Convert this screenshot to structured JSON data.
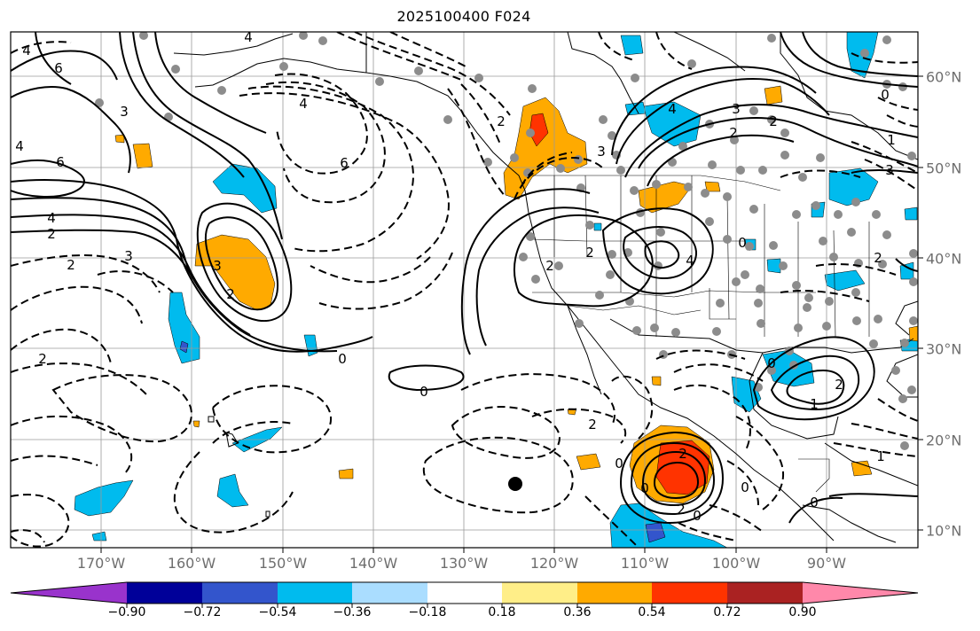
{
  "title": "2025100400 F024",
  "map": {
    "lon_labels": [
      "170°W",
      "160°W",
      "150°W",
      "140°W",
      "130°W",
      "120°W",
      "110°W",
      "100°W",
      "90°W"
    ],
    "lat_labels": [
      "60°N",
      "50°N",
      "40°N",
      "30°N",
      "20°N",
      "10°N"
    ],
    "contour_labels": [
      "4",
      "6",
      "3",
      "4",
      "6",
      "4",
      "2",
      "2",
      "3",
      "3",
      "6",
      "4",
      "2",
      "2",
      "0",
      "0",
      "2",
      "2",
      "2",
      "4",
      "3",
      "2",
      "3",
      "0",
      "1",
      "3",
      "2",
      "2",
      "1",
      "0",
      "0",
      "2",
      "2",
      "0",
      "2",
      "0",
      "0",
      "2",
      "0",
      "0",
      "4",
      "1",
      "4"
    ],
    "station_marker_color": "#8c8c8c"
  },
  "colorbar": {
    "colors": [
      "#9933cc",
      "#000099",
      "#3355cc",
      "#00bbee",
      "#aaddff",
      "#ffffff",
      "#ffee88",
      "#ffaa00",
      "#ff3300",
      "#aa2222",
      "#ff88aa"
    ],
    "tick_labels": [
      "−0.90",
      "−0.72",
      "−0.54",
      "−0.36",
      "−0.18",
      "0.18",
      "0.36",
      "0.54",
      "0.72",
      "0.90"
    ]
  }
}
